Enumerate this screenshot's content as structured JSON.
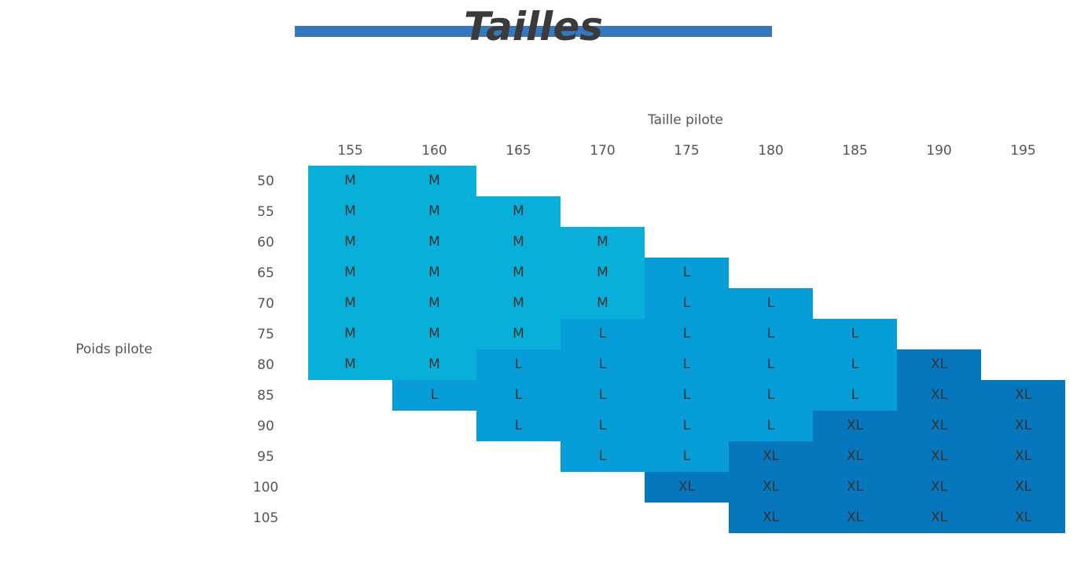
{
  "header": {
    "title": "Tailles"
  },
  "table": {
    "column_label": "Taille pilote",
    "row_label": "Poids pilote",
    "columns": [
      155,
      160,
      165,
      170,
      175,
      180,
      185,
      190,
      195
    ],
    "row_headers": [
      50,
      55,
      60,
      65,
      70,
      75,
      80,
      85,
      90,
      95,
      100,
      105
    ],
    "rows": [
      [
        {
          "label": "M",
          "color": "#08afd8"
        },
        {
          "label": "M",
          "color": "#08afd8"
        },
        null,
        null,
        null,
        null,
        null,
        null,
        null
      ],
      [
        {
          "label": "M",
          "color": "#08afd8"
        },
        {
          "label": "M",
          "color": "#08afd8"
        },
        {
          "label": "M",
          "color": "#08afd8"
        },
        null,
        null,
        null,
        null,
        null,
        null
      ],
      [
        {
          "label": "M",
          "color": "#08afd8"
        },
        {
          "label": "M",
          "color": "#08afd8"
        },
        {
          "label": "M",
          "color": "#08afd8"
        },
        {
          "label": "M",
          "color": "#08afd8"
        },
        null,
        null,
        null,
        null,
        null
      ],
      [
        {
          "label": "M",
          "color": "#08afd8"
        },
        {
          "label": "M",
          "color": "#08afd8"
        },
        {
          "label": "M",
          "color": "#08afd8"
        },
        {
          "label": "M",
          "color": "#08afd8"
        },
        {
          "label": "L",
          "color": "#079dd9"
        },
        null,
        null,
        null,
        null
      ],
      [
        {
          "label": "M",
          "color": "#08afd8"
        },
        {
          "label": "M",
          "color": "#08afd8"
        },
        {
          "label": "M",
          "color": "#08afd8"
        },
        {
          "label": "M",
          "color": "#08afd8"
        },
        {
          "label": "L",
          "color": "#079dd9"
        },
        {
          "label": "L",
          "color": "#079dd9"
        },
        null,
        null,
        null
      ],
      [
        {
          "label": "M",
          "color": "#08afd8"
        },
        {
          "label": "M",
          "color": "#08afd8"
        },
        {
          "label": "M",
          "color": "#08afd8"
        },
        {
          "label": "L",
          "color": "#079dd9"
        },
        {
          "label": "L",
          "color": "#079dd9"
        },
        {
          "label": "L",
          "color": "#079dd9"
        },
        {
          "label": "L",
          "color": "#079dd9"
        },
        null,
        null
      ],
      [
        {
          "label": "M",
          "color": "#08afd8"
        },
        {
          "label": "M",
          "color": "#08afd8"
        },
        {
          "label": "L",
          "color": "#079dd9"
        },
        {
          "label": "L",
          "color": "#079dd9"
        },
        {
          "label": "L",
          "color": "#079dd9"
        },
        {
          "label": "L",
          "color": "#079dd9"
        },
        {
          "label": "L",
          "color": "#079dd9"
        },
        {
          "label": "XL",
          "color": "#0777bd"
        },
        null
      ],
      [
        null,
        {
          "label": "L",
          "color": "#079dd9"
        },
        {
          "label": "L",
          "color": "#079dd9"
        },
        {
          "label": "L",
          "color": "#079dd9"
        },
        {
          "label": "L",
          "color": "#079dd9"
        },
        {
          "label": "L",
          "color": "#079dd9"
        },
        {
          "label": "L",
          "color": "#079dd9"
        },
        {
          "label": "XL",
          "color": "#0777bd"
        },
        {
          "label": "XL",
          "color": "#0777bd"
        }
      ],
      [
        null,
        null,
        {
          "label": "L",
          "color": "#079dd9"
        },
        {
          "label": "L",
          "color": "#079dd9"
        },
        {
          "label": "L",
          "color": "#079dd9"
        },
        {
          "label": "L",
          "color": "#079dd9"
        },
        {
          "label": "XL",
          "color": "#0777bd"
        },
        {
          "label": "XL",
          "color": "#0777bd"
        },
        {
          "label": "XL",
          "color": "#0777bd"
        }
      ],
      [
        null,
        null,
        null,
        {
          "label": "L",
          "color": "#079dd9"
        },
        {
          "label": "L",
          "color": "#079dd9"
        },
        {
          "label": "XL",
          "color": "#0777bd"
        },
        {
          "label": "XL",
          "color": "#0777bd"
        },
        {
          "label": "XL",
          "color": "#0777bd"
        },
        {
          "label": "XL",
          "color": "#0777bd"
        }
      ],
      [
        null,
        null,
        null,
        null,
        {
          "label": "XL",
          "color": "#0777bd"
        },
        {
          "label": "XL",
          "color": "#0777bd"
        },
        {
          "label": "XL",
          "color": "#0777bd"
        },
        {
          "label": "XL",
          "color": "#0777bd"
        },
        {
          "label": "XL",
          "color": "#0777bd"
        }
      ],
      [
        null,
        null,
        null,
        null,
        null,
        {
          "label": "XL",
          "color": "#0777bd"
        },
        {
          "label": "XL",
          "color": "#0777bd"
        },
        {
          "label": "XL",
          "color": "#0777bd"
        },
        {
          "label": "XL",
          "color": "#0777bd"
        }
      ]
    ]
  }
}
